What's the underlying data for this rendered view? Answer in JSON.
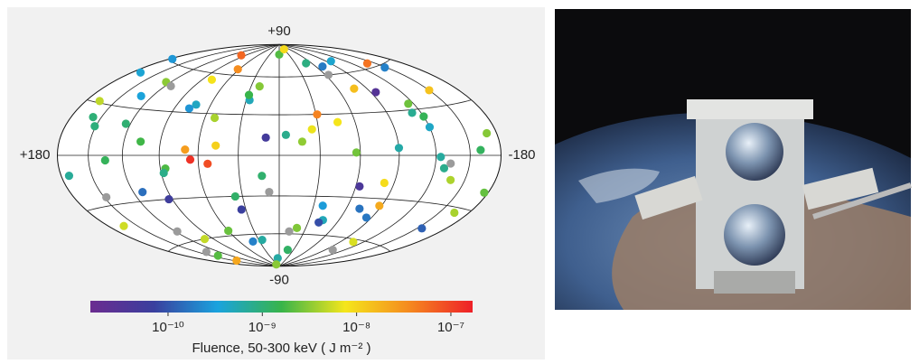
{
  "chart_data": {
    "type": "scatter",
    "projection": "hammer",
    "xlim": [
      180,
      -180
    ],
    "ylim": [
      -90,
      90
    ],
    "xticks": [
      {
        "value": 180,
        "label": "+180"
      },
      -180
    ],
    "yticks": [
      {
        "value": 90,
        "label": "+90"
      },
      -90
    ],
    "grid": true,
    "x": [
      -170,
      -155,
      -140,
      -128,
      -115,
      -102,
      -90,
      -77,
      -63,
      -50,
      -38,
      -25,
      -12,
      0,
      13,
      27,
      40,
      52,
      66,
      79,
      93,
      106,
      118,
      131,
      145,
      158,
      172,
      -165,
      -148,
      -133,
      -120,
      -107,
      -95,
      -82,
      -70,
      -57,
      -44,
      -31,
      -18,
      -5,
      8,
      21,
      34,
      47,
      60,
      73,
      86,
      99,
      112,
      125,
      138,
      151,
      164,
      177,
      -160,
      -137,
      -112,
      -88,
      -64,
      -41,
      -17,
      6,
      29,
      53,
      77,
      101,
      124,
      148,
      171,
      -176,
      -150,
      -124,
      -98,
      -72,
      -46,
      -20,
      10,
      36,
      62,
      88,
      114,
      140,
      166,
      -85,
      -30,
      25,
      70,
      135,
      -120,
      45
    ],
    "y": [
      12,
      -45,
      63,
      -8,
      34,
      -70,
      5,
      48,
      -22,
      71,
      -37,
      19,
      -58,
      80,
      -15,
      41,
      -66,
      27,
      -3,
      55,
      -30,
      9,
      -52,
      38,
      -78,
      22,
      -11,
      -33,
      58,
      -5,
      25,
      -62,
      44,
      -19,
      67,
      2,
      -48,
      30,
      -74,
      15,
      -27,
      52,
      -40,
      7,
      -56,
      36,
      -9,
      76,
      -24,
      49,
      -68,
      17,
      -42,
      61,
      3,
      -15,
      28,
      -35,
      60,
      -50,
      10,
      -82,
      45,
      -6,
      33,
      -60,
      20,
      -25,
      50,
      -20,
      40,
      -1,
      70,
      -38,
      24,
      -55,
      13,
      -30,
      65,
      -12,
      47,
      -72,
      31,
      -44,
      85,
      -65,
      4,
      -3,
      18,
      -88
    ],
    "values": [
      3e-09,
      1.2e-10,
      5e-08,
      8e-10,
      2.5e-09,
      null,
      6e-10,
      1.5e-08,
      4e-11,
      9e-10,
      3e-10,
      7e-09,
      null,
      2e-09,
      1.1e-09,
      5e-10,
      2e-10,
      4e-09,
      1.3e-07,
      8e-09,
      6e-11,
      1.7e-09,
      null,
      3.5e-10,
      2.2e-08,
      1e-09,
      7e-10,
      4e-09,
      2e-10,
      null,
      1.4e-09,
      6e-09,
      3e-11,
      9e-09,
      1.8e-10,
      2.6e-09,
      5e-10,
      4e-08,
      1.2e-09,
      8e-10,
      null,
      3e-09,
      7e-11,
      1.1e-08,
      2.4e-09,
      4.5e-10,
      1.9e-09,
      6e-08,
      1.5e-10,
      3.2e-09,
      null,
      9.5e-10,
      5.5e-09,
      2.8e-10,
      1.3e-09,
      4.2e-09,
      7.5e-10,
      2.1e-08,
      null,
      9e-11,
      3.3e-09,
      6.2e-10,
      1.6e-09,
      8.8e-08,
      2.7e-10,
      5e-09,
      1.05e-09,
      null,
      3.8e-10,
      2.3e-09,
      1.4e-08,
      6.6e-10,
      4e-10,
      1.6e-10,
      7.7e-09,
      2.9e-09,
      5.1e-11,
      1.15e-09,
      3.4e-08,
      8.3e-10,
      null,
      2.05e-09,
      4.8e-09,
      1.7e-10,
      9.2e-09,
      6.4e-10,
      2.6e-08,
      1.35e-09,
      4.4e-10,
      3.1e-09
    ],
    "missing_color": "#9b9b9b",
    "colorbar": {
      "label": "Fluence, 50-300 keV ( J m⁻² )",
      "scale": "log",
      "clim": [
        1.5e-11,
        1.7e-07
      ],
      "colormap": [
        "#6b2c90",
        "#3a3f9e",
        "#1aa3de",
        "#38b44a",
        "#f5e61b",
        "#f58a1f",
        "#ee2028"
      ],
      "ticks": [
        {
          "value": 1e-10,
          "label": "10⁻¹⁰"
        },
        {
          "value": 1e-09,
          "label": "10⁻⁹"
        },
        {
          "value": 1e-08,
          "label": "10⁻⁸"
        },
        {
          "value": 1e-07,
          "label": "10⁻⁷"
        }
      ]
    }
  }
}
